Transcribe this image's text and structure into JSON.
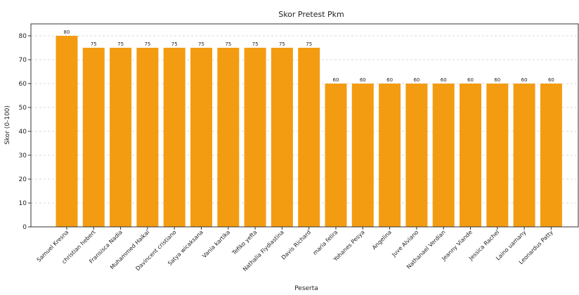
{
  "chart_data": {
    "type": "bar",
    "title": "Skor Pretest Pkm",
    "xlabel": "Peserta",
    "ylabel": "Skor (0-100)",
    "ylim": [
      0,
      85
    ],
    "yticks": [
      0,
      10,
      20,
      30,
      40,
      50,
      60,
      70,
      80
    ],
    "grid": true,
    "bar_color": "#f39c12",
    "categories": [
      "Samuel Kresna",
      "christian hebert",
      "Fransisca Nadia",
      "Muhammed Haikal",
      "Davincent cristiano",
      "Satya wicaksana",
      "Vania kartika",
      "Tefiko yefta",
      "Nathalia Fiydiastina",
      "Davis Richard",
      "maria felira",
      "Yohanes Pesya",
      "Angelina",
      "Juve Alviano",
      "Nathanael Verdian",
      "Jeanny Viande",
      "Jessica Rachel",
      "Laino uamany",
      "Leonardus Patty"
    ],
    "values": [
      80,
      75,
      75,
      75,
      75,
      75,
      75,
      75,
      75,
      75,
      60,
      60,
      60,
      60,
      60,
      60,
      60,
      60,
      60
    ]
  }
}
